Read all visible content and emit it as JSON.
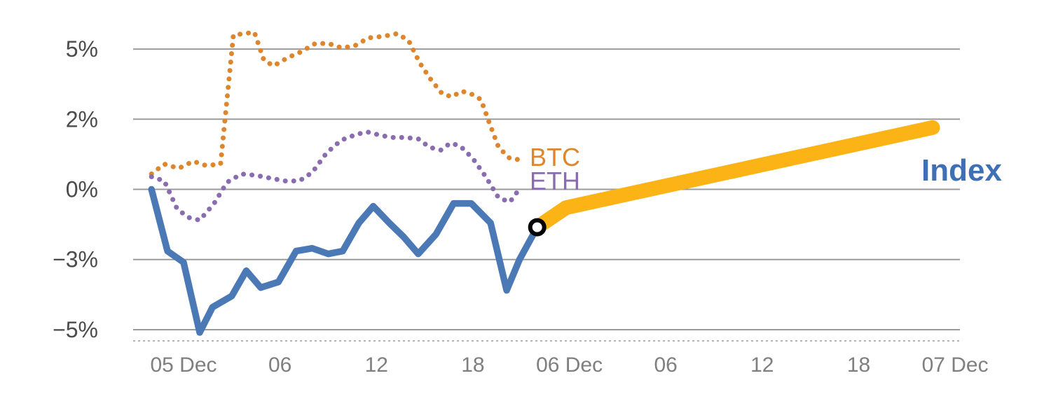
{
  "chart_data": {
    "type": "line",
    "title": "",
    "xlabel": "",
    "ylabel": "",
    "x_unit": "hours since 05 Dec 00:00",
    "x_domain": [
      -3.14,
      48.3
    ],
    "y_domain": [
      -5.4,
      6.0
    ],
    "grid": "horizontal",
    "legend_position": "inline-annotations",
    "y_ticks": [
      {
        "v": 5,
        "label": "5%"
      },
      {
        "v": 2.5,
        "label": "2%"
      },
      {
        "v": 0,
        "label": "0%"
      },
      {
        "v": -2.5,
        "label": "−3%"
      },
      {
        "v": -5,
        "label": "−5%"
      }
    ],
    "x_ticks": [
      {
        "v": 0,
        "label": "05 Dec"
      },
      {
        "v": 6,
        "label": "06"
      },
      {
        "v": 12,
        "label": "12"
      },
      {
        "v": 18,
        "label": "18"
      },
      {
        "v": 24,
        "label": "06 Dec"
      },
      {
        "v": 30,
        "label": "06"
      },
      {
        "v": 36,
        "label": "12"
      },
      {
        "v": 42,
        "label": "18"
      },
      {
        "v": 48,
        "label": "07 Dec"
      }
    ],
    "series": [
      {
        "id": "btc",
        "name": "BTC",
        "style": "dotted",
        "color": "#dd862e",
        "width": 7,
        "points": [
          [
            -2.0,
            0.55
          ],
          [
            -1.2,
            0.9
          ],
          [
            -0.3,
            0.75
          ],
          [
            0.6,
            1.0
          ],
          [
            1.4,
            0.85
          ],
          [
            2.3,
            0.9
          ],
          [
            3.1,
            5.5
          ],
          [
            3.8,
            5.55
          ],
          [
            4.4,
            5.6
          ],
          [
            5.0,
            4.6
          ],
          [
            5.6,
            4.4
          ],
          [
            6.5,
            4.7
          ],
          [
            7.3,
            4.9
          ],
          [
            8.2,
            5.2
          ],
          [
            9.0,
            5.2
          ],
          [
            9.8,
            5.05
          ],
          [
            10.6,
            5.1
          ],
          [
            11.5,
            5.4
          ],
          [
            12.4,
            5.45
          ],
          [
            13.3,
            5.55
          ],
          [
            14.0,
            5.3
          ],
          [
            14.7,
            4.5
          ],
          [
            15.4,
            3.9
          ],
          [
            16.1,
            3.4
          ],
          [
            16.7,
            3.3
          ],
          [
            17.3,
            3.5
          ],
          [
            17.9,
            3.4
          ],
          [
            18.5,
            3.2
          ],
          [
            19.0,
            2.4
          ],
          [
            19.6,
            1.5
          ],
          [
            20.3,
            1.1
          ],
          [
            21.0,
            1.05
          ]
        ]
      },
      {
        "id": "eth",
        "name": "ETH",
        "style": "dotted",
        "color": "#8a6cb0",
        "width": 7,
        "points": [
          [
            -2.0,
            0.45
          ],
          [
            -1.2,
            0.3
          ],
          [
            -0.4,
            -0.7
          ],
          [
            0.3,
            -1.0
          ],
          [
            1.0,
            -1.1
          ],
          [
            1.9,
            -0.5
          ],
          [
            2.7,
            0.25
          ],
          [
            3.6,
            0.55
          ],
          [
            4.5,
            0.5
          ],
          [
            5.4,
            0.4
          ],
          [
            6.3,
            0.3
          ],
          [
            7.2,
            0.3
          ],
          [
            8.0,
            0.6
          ],
          [
            8.9,
            1.3
          ],
          [
            9.8,
            1.75
          ],
          [
            10.7,
            1.95
          ],
          [
            11.4,
            2.05
          ],
          [
            12.1,
            1.95
          ],
          [
            12.9,
            1.85
          ],
          [
            13.8,
            1.85
          ],
          [
            14.6,
            1.8
          ],
          [
            15.3,
            1.5
          ],
          [
            16.0,
            1.4
          ],
          [
            16.6,
            1.65
          ],
          [
            17.2,
            1.55
          ],
          [
            18.0,
            1.1
          ],
          [
            18.8,
            0.45
          ],
          [
            19.6,
            -0.3
          ],
          [
            20.3,
            -0.45
          ],
          [
            21.0,
            0.1
          ]
        ]
      },
      {
        "id": "index",
        "name": "Index",
        "style": "solid",
        "color": "#4a79b5",
        "width": 9.5,
        "points": [
          [
            -2.0,
            0.0
          ],
          [
            -1.0,
            -2.2
          ],
          [
            0.0,
            -2.6
          ],
          [
            1.0,
            -5.1
          ],
          [
            1.8,
            -4.2
          ],
          [
            3.0,
            -3.8
          ],
          [
            3.9,
            -2.9
          ],
          [
            4.8,
            -3.5
          ],
          [
            5.9,
            -3.3
          ],
          [
            7.0,
            -2.2
          ],
          [
            8.0,
            -2.1
          ],
          [
            9.0,
            -2.3
          ],
          [
            9.9,
            -2.2
          ],
          [
            10.9,
            -1.2
          ],
          [
            11.8,
            -0.6
          ],
          [
            12.8,
            -1.2
          ],
          [
            13.7,
            -1.7
          ],
          [
            14.6,
            -2.3
          ],
          [
            15.7,
            -1.6
          ],
          [
            16.8,
            -0.5
          ],
          [
            17.9,
            -0.5
          ],
          [
            19.1,
            -1.2
          ],
          [
            20.1,
            -3.6
          ],
          [
            20.9,
            -2.5
          ],
          [
            22.0,
            -1.35
          ]
        ]
      },
      {
        "id": "index-projection",
        "name": "Index projection",
        "style": "solid",
        "color": "#fcb316",
        "width": 21,
        "points": [
          [
            22.0,
            -1.35
          ],
          [
            23.8,
            -0.65
          ],
          [
            46.6,
            2.2
          ]
        ]
      }
    ],
    "marker": {
      "x": 22.0,
      "y": -1.35
    },
    "series_labels": {
      "btc": "BTC",
      "eth": "ETH",
      "index": "Index"
    }
  },
  "colors": {
    "index_line": "#4a79b5",
    "btc_line": "#dd862e",
    "eth_line": "#8a6cb0",
    "projection_line": "#fcb316",
    "index_label": "#3f70b5",
    "grid": "#9b9b9b",
    "y_tick_text": "#4b4b4b",
    "x_tick_text": "#7f7f7f",
    "marker_ring": "#000000",
    "marker_fill": "#ffffff"
  }
}
